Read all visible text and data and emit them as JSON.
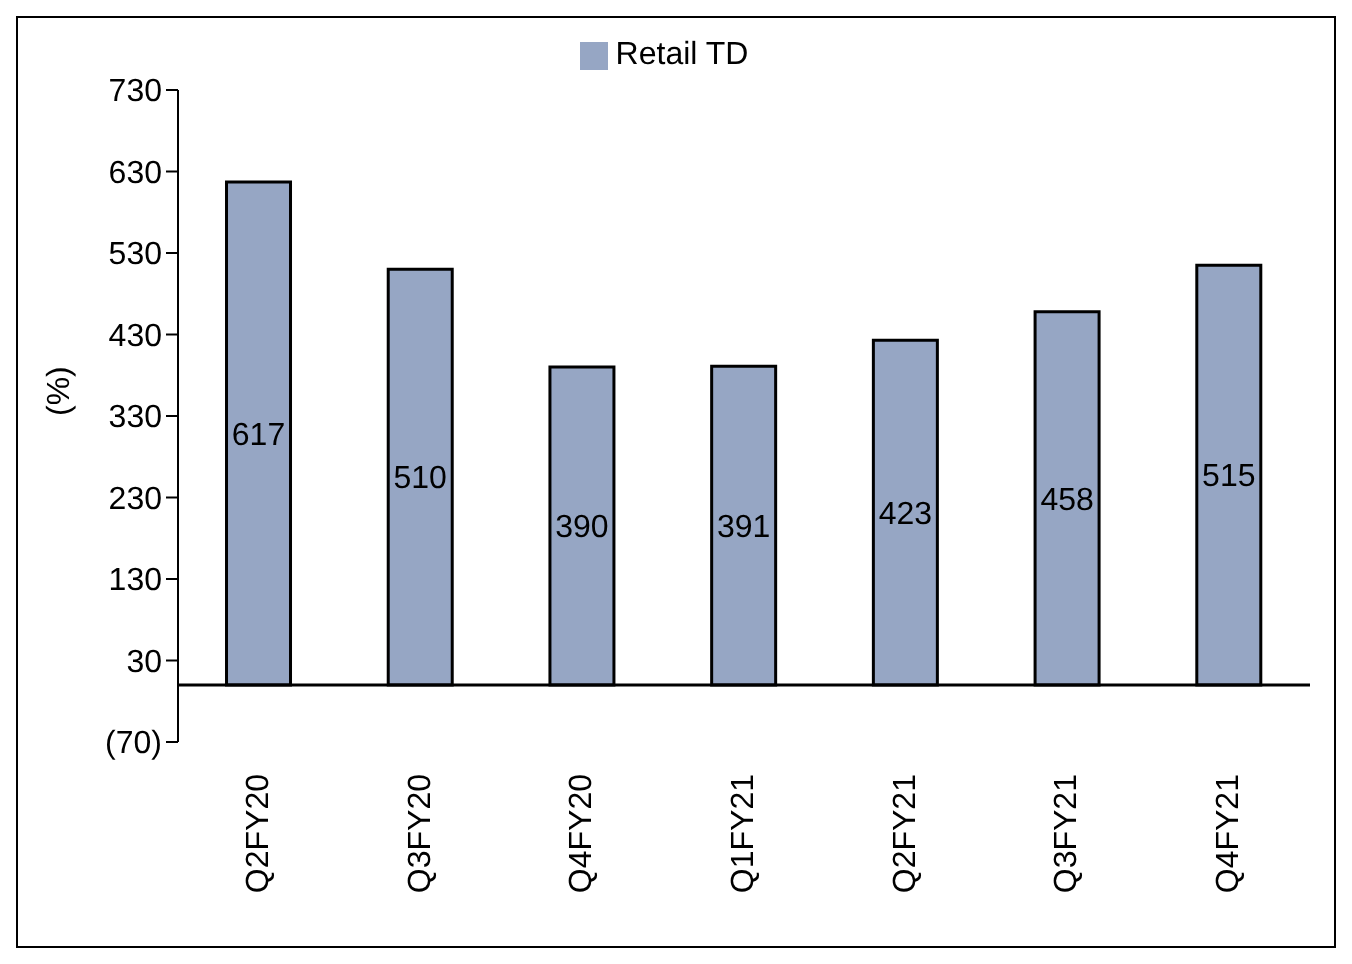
{
  "chart_data": {
    "type": "bar",
    "ylabel": "(%)",
    "categories": [
      "Q2FY20",
      "Q3FY20",
      "Q4FY20",
      "Q1FY21",
      "Q2FY21",
      "Q3FY21",
      "Q4FY21"
    ],
    "series": [
      {
        "name": "Retail TD",
        "color": "#96a6c4",
        "values": [
          617,
          510,
          390,
          391,
          423,
          458,
          515
        ]
      }
    ],
    "ylim": [
      -70,
      730
    ],
    "yticks": [
      {
        "value": -70,
        "label": "(70)"
      },
      30,
      130,
      230,
      330,
      430,
      530,
      630,
      730
    ],
    "data_labels": true,
    "legend": "top",
    "grid": false
  }
}
